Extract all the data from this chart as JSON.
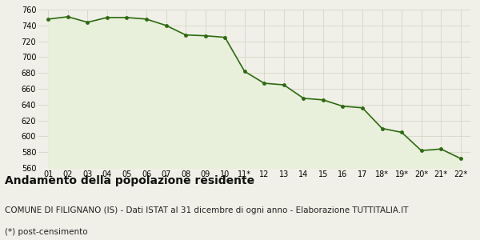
{
  "x_labels": [
    "01",
    "02",
    "03",
    "04",
    "05",
    "06",
    "07",
    "08",
    "09",
    "10",
    "11*",
    "12",
    "13",
    "14",
    "15",
    "16",
    "17",
    "18*",
    "19*",
    "20*",
    "21*",
    "22*"
  ],
  "y_values": [
    748,
    751,
    744,
    750,
    750,
    748,
    740,
    728,
    727,
    725,
    682,
    667,
    665,
    648,
    646,
    638,
    636,
    610,
    605,
    582,
    584,
    572
  ],
  "line_color": "#2d6a10",
  "fill_color": "#e8efdb",
  "marker_color": "#2d6a10",
  "bg_color": "#f0f0e8",
  "plot_bg_color": "#f0f0e8",
  "grid_color": "#d0d0c0",
  "ylim": [
    560,
    760
  ],
  "yticks": [
    560,
    580,
    600,
    620,
    640,
    660,
    680,
    700,
    720,
    740,
    760
  ],
  "title": "Andamento della popolazione residente",
  "subtitle": "COMUNE DI FILIGNANO (IS) - Dati ISTAT al 31 dicembre di ogni anno - Elaborazione TUTTITALIA.IT",
  "footnote": "(*) post-censimento",
  "title_fontsize": 10,
  "subtitle_fontsize": 7.5,
  "footnote_fontsize": 7.5
}
